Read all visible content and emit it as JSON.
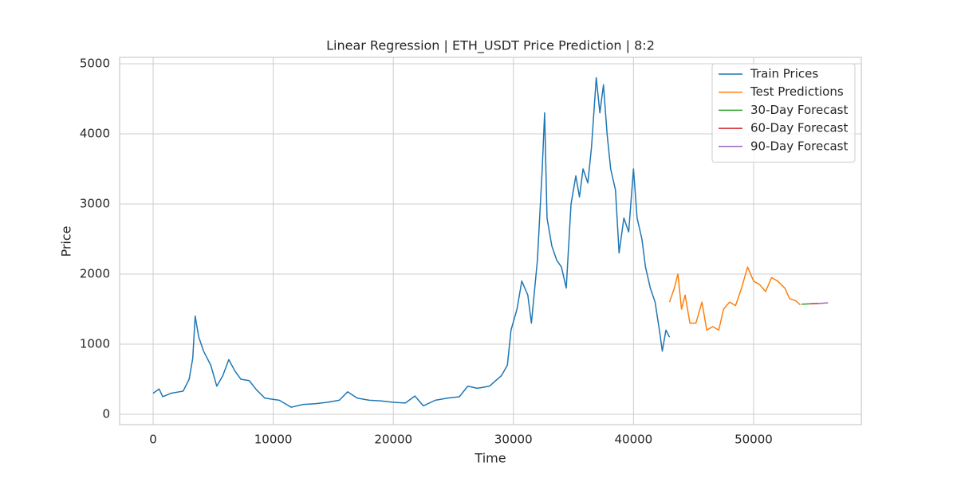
{
  "chart_data": {
    "type": "line",
    "title": "Linear Regression | ETH_USDT Price Prediction | 8:2",
    "x_label": "Time",
    "y_label": "Price",
    "xlim": [
      -2790,
      58970
    ],
    "ylim": [
      -148,
      5091
    ],
    "xticks": [
      0,
      10000,
      20000,
      30000,
      40000,
      50000
    ],
    "yticks": [
      0,
      1000,
      2000,
      3000,
      4000,
      5000
    ],
    "grid": true,
    "legend": "upper right",
    "series": [
      {
        "name": "Train Prices",
        "color": "#1f77b4",
        "x": [
          0,
          500,
          800,
          1500,
          2500,
          3000,
          3300,
          3500,
          3800,
          4200,
          4800,
          5300,
          5800,
          6300,
          6800,
          7300,
          8000,
          8600,
          9300,
          10500,
          11500,
          12500,
          13500,
          14500,
          15500,
          16200,
          17000,
          18000,
          19000,
          20000,
          21000,
          21800,
          22500,
          23500,
          24500,
          25500,
          26200,
          27000,
          28000,
          29000,
          29500,
          29800,
          30300,
          30700,
          31200,
          31500,
          32000,
          32400,
          32600,
          32800,
          33200,
          33600,
          34000,
          34400,
          34800,
          35200,
          35500,
          35800,
          36200,
          36500,
          36900,
          37200,
          37500,
          37800,
          38100,
          38500,
          38800,
          39200,
          39600,
          40000,
          40300,
          40700,
          41000,
          41400,
          41800,
          42200,
          42400,
          42700,
          43000
        ],
        "values": [
          300,
          360,
          250,
          300,
          330,
          500,
          800,
          1400,
          1100,
          900,
          700,
          400,
          550,
          780,
          620,
          500,
          480,
          350,
          230,
          200,
          100,
          140,
          150,
          170,
          200,
          320,
          230,
          200,
          190,
          170,
          160,
          260,
          120,
          200,
          230,
          250,
          400,
          370,
          400,
          550,
          700,
          1200,
          1500,
          1900,
          1700,
          1300,
          2200,
          3500,
          4300,
          2800,
          2400,
          2200,
          2100,
          1800,
          3000,
          3400,
          3100,
          3500,
          3300,
          3800,
          4800,
          4300,
          4700,
          4000,
          3500,
          3200,
          2300,
          2800,
          2600,
          3500,
          2800,
          2500,
          2100,
          1800,
          1600,
          1150,
          900,
          1200,
          1100
        ]
      },
      {
        "name": "Test Predictions",
        "color": "#ff7f0e",
        "x": [
          43000,
          43400,
          43700,
          44000,
          44300,
          44700,
          45200,
          45700,
          46100,
          46600,
          47100,
          47500,
          48000,
          48500,
          49000,
          49500,
          50000,
          50500,
          51000,
          51500,
          52000,
          52600,
          53000,
          53500,
          53900
        ],
        "values": [
          1600,
          1800,
          2000,
          1500,
          1700,
          1300,
          1300,
          1600,
          1200,
          1250,
          1200,
          1500,
          1600,
          1550,
          1800,
          2100,
          1900,
          1850,
          1750,
          1950,
          1900,
          1800,
          1650,
          1620,
          1560
        ]
      },
      {
        "name": "30-Day Forecast",
        "color": "#2ca02c",
        "x": [
          54000,
          54700
        ],
        "values": [
          1570,
          1575
        ]
      },
      {
        "name": "60-Day Forecast",
        "color": "#d62728",
        "x": [
          54700,
          55400
        ],
        "values": [
          1575,
          1580
        ]
      },
      {
        "name": "90-Day Forecast",
        "color": "#9467bd",
        "x": [
          55400,
          56200
        ],
        "values": [
          1580,
          1590
        ]
      }
    ]
  }
}
